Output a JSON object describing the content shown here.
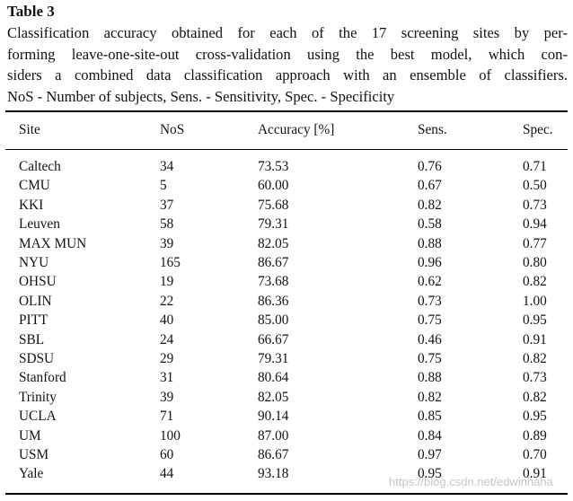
{
  "table": {
    "label": "Table 3",
    "caption_lines": [
      "Classification accuracy obtained for each of the 17 screening sites by per-",
      "forming leave-one-site-out cross-validation using the best model, which con-",
      "siders a combined data classification approach with an ensemble of classifiers.",
      "NoS - Number of subjects, Sens. - Sensitivity, Spec. - Specificity"
    ],
    "columns": [
      "Site",
      "NoS",
      "Accuracy [%]",
      "Sens.",
      "Spec."
    ],
    "rows": [
      [
        "Caltech",
        "34",
        "73.53",
        "0.76",
        "0.71"
      ],
      [
        "CMU",
        "5",
        "60.00",
        "0.67",
        "0.50"
      ],
      [
        "KKI",
        "37",
        "75.68",
        "0.82",
        "0.73"
      ],
      [
        "Leuven",
        "58",
        "79.31",
        "0.58",
        "0.94"
      ],
      [
        "MAX MUN",
        "39",
        "82.05",
        "0.88",
        "0.77"
      ],
      [
        "NYU",
        "165",
        "86.67",
        "0.96",
        "0.80"
      ],
      [
        "OHSU",
        "19",
        "73.68",
        "0.62",
        "0.82"
      ],
      [
        "OLIN",
        "22",
        "86.36",
        "0.73",
        "1.00"
      ],
      [
        "PITT",
        "40",
        "85.00",
        "0.75",
        "0.95"
      ],
      [
        "SBL",
        "24",
        "66.67",
        "0.46",
        "0.91"
      ],
      [
        "SDSU",
        "29",
        "79.31",
        "0.75",
        "0.82"
      ],
      [
        "Stanford",
        "31",
        "80.64",
        "0.88",
        "0.73"
      ],
      [
        "Trinity",
        "39",
        "82.05",
        "0.82",
        "0.82"
      ],
      [
        "UCLA",
        "71",
        "90.14",
        "0.85",
        "0.95"
      ],
      [
        "UM",
        "100",
        "87.00",
        "0.84",
        "0.89"
      ],
      [
        "USM",
        "60",
        "86.67",
        "0.97",
        "0.70"
      ],
      [
        "Yale",
        "44",
        "93.18",
        "0.95",
        "0.91"
      ]
    ]
  },
  "watermark": "https://blog.csdn.net/edwinhaha"
}
